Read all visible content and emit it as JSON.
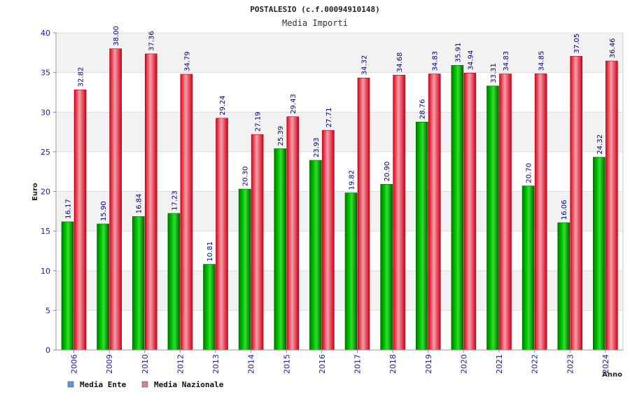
{
  "chart_data": {
    "type": "bar",
    "title": "POSTALESIO (c.f.00094910148)",
    "subtitle": "Media Importi",
    "xlabel": "Anno",
    "ylabel": "Euro",
    "ylim": [
      0,
      40
    ],
    "yticks": [
      "0",
      "5",
      "10",
      "15",
      "20",
      "25",
      "30",
      "35",
      "40"
    ],
    "grid": true,
    "legend_position": "bottom-left",
    "categories": [
      "2006",
      "2009",
      "2010",
      "2012",
      "2013",
      "2014",
      "2015",
      "2016",
      "2017",
      "2018",
      "2019",
      "2020",
      "2021",
      "2022",
      "2023",
      "2024"
    ],
    "series": [
      {
        "name": "Media Ente",
        "color": "#00a000",
        "legend_color": "#5b9bd5",
        "values": [
          16.17,
          15.9,
          16.84,
          17.23,
          10.81,
          20.3,
          25.39,
          23.93,
          19.82,
          20.9,
          28.76,
          35.91,
          33.31,
          20.7,
          16.06,
          24.32
        ],
        "labels": [
          "16.17",
          "15.90",
          "16.84",
          "17.23",
          "10.81",
          "20.30",
          "25.39",
          "23.93",
          "19.82",
          "20.90",
          "28.76",
          "35.91",
          "33.31",
          "20.70",
          "16.06",
          "24.32"
        ]
      },
      {
        "name": "Media Nazionale",
        "color": "#e8001c",
        "legend_color": "#d580a8",
        "values": [
          32.82,
          38.0,
          37.36,
          34.79,
          29.24,
          27.19,
          29.43,
          27.71,
          34.32,
          34.68,
          34.83,
          34.94,
          34.83,
          34.85,
          37.05,
          36.46
        ],
        "labels": [
          "32.82",
          "38.00",
          "37.36",
          "34.79",
          "29.24",
          "27.19",
          "29.43",
          "27.71",
          "34.32",
          "34.68",
          "34.83",
          "34.94",
          "34.83",
          "34.85",
          "37.05",
          "36.46"
        ]
      }
    ]
  }
}
